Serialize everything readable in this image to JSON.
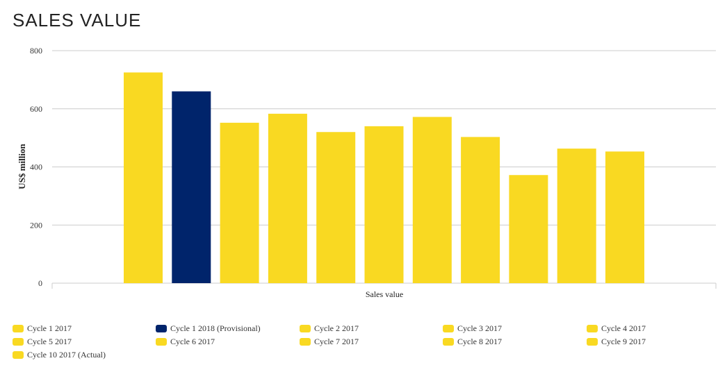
{
  "title": "SALES VALUE",
  "colors": {
    "highlight": "#00246B",
    "default": "#F9D922"
  },
  "chart_data": {
    "type": "bar",
    "title": "SALES VALUE",
    "xlabel": "Sales value",
    "ylabel": "US$ million",
    "ylim": [
      0,
      800
    ],
    "yticks": [
      "0",
      "200",
      "400",
      "600",
      "800"
    ],
    "grid": true,
    "legend_position": "bottom",
    "series": [
      {
        "name": "Cycle 1 2017",
        "value": 725,
        "color": "#F9D922"
      },
      {
        "name": "Cycle 1 2018 (Provisional)",
        "value": 660,
        "color": "#00246B"
      },
      {
        "name": "Cycle 2 2017",
        "value": 552,
        "color": "#F9D922"
      },
      {
        "name": "Cycle 3 2017",
        "value": 583,
        "color": "#F9D922"
      },
      {
        "name": "Cycle 4 2017",
        "value": 520,
        "color": "#F9D922"
      },
      {
        "name": "Cycle 5 2017",
        "value": 540,
        "color": "#F9D922"
      },
      {
        "name": "Cycle 6 2017",
        "value": 572,
        "color": "#F9D922"
      },
      {
        "name": "Cycle 7 2017",
        "value": 503,
        "color": "#F9D922"
      },
      {
        "name": "Cycle 8 2017",
        "value": 372,
        "color": "#F9D922"
      },
      {
        "name": "Cycle 9 2017",
        "value": 463,
        "color": "#F9D922"
      },
      {
        "name": "Cycle 10 2017 (Actual)",
        "value": 453,
        "color": "#F9D922"
      }
    ]
  }
}
